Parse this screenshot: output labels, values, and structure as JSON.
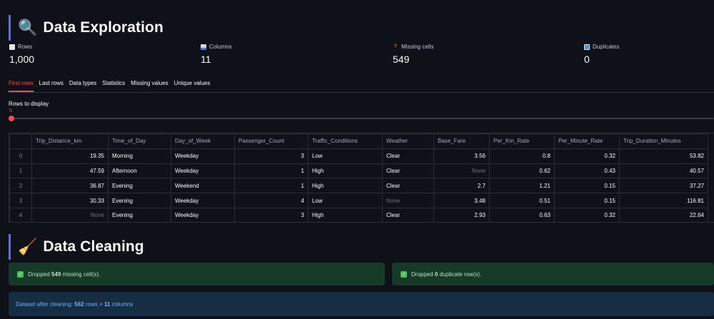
{
  "exploration": {
    "title": "Data Exploration",
    "icon": "magnifier-icon"
  },
  "metrics": [
    {
      "label": "Rows",
      "value": "1,000",
      "icon": "page-icon"
    },
    {
      "label": "Columns",
      "value": "11",
      "icon": "bar-chart-icon"
    },
    {
      "label": "Missing cells",
      "value": "549",
      "icon": "question-icon"
    },
    {
      "label": "Duplicates",
      "value": "0",
      "icon": "duplicate-icon"
    }
  ],
  "tabs": [
    "First rows",
    "Last rows",
    "Data types",
    "Statistics",
    "Missing values",
    "Unique values"
  ],
  "active_tab": 0,
  "slider": {
    "label": "Rows to display",
    "value": "5"
  },
  "table": {
    "columns": [
      "Trip_Distance_km",
      "Time_of_Day",
      "Day_of_Week",
      "Passenger_Count",
      "Traffic_Conditions",
      "Weather",
      "Base_Fare",
      "Per_Km_Rate",
      "Per_Minute_Rate",
      "Trip_Duration_Minutes"
    ],
    "rows": [
      {
        "index": "0",
        "cells": [
          "19.35",
          "Morning",
          "Weekday",
          "3",
          "Low",
          "Clear",
          "3.56",
          "0.8",
          "0.32",
          "53.82"
        ]
      },
      {
        "index": "1",
        "cells": [
          "47.59",
          "Afternoon",
          "Weekday",
          "1",
          "High",
          "Clear",
          "None",
          "0.62",
          "0.43",
          "40.57"
        ]
      },
      {
        "index": "2",
        "cells": [
          "36.87",
          "Evening",
          "Weekend",
          "1",
          "High",
          "Clear",
          "2.7",
          "1.21",
          "0.15",
          "37.27"
        ]
      },
      {
        "index": "3",
        "cells": [
          "30.33",
          "Evening",
          "Weekday",
          "4",
          "Low",
          "None",
          "3.48",
          "0.51",
          "0.15",
          "116.81"
        ]
      },
      {
        "index": "4",
        "cells": [
          "None",
          "Evening",
          "Weekday",
          "3",
          "High",
          "Clear",
          "2.93",
          "0.63",
          "0.32",
          "22.64"
        ]
      }
    ]
  },
  "cleaning": {
    "title": "Data Cleaning",
    "icon": "broom-icon",
    "missing_alert": {
      "prefix": "Dropped ",
      "count": "549",
      "suffix": " missing cell(s)."
    },
    "dup_alert": {
      "prefix": "Dropped ",
      "count": "0",
      "suffix": " duplicate row(s)."
    },
    "info": {
      "prefix": "Dataset after cleaning: ",
      "rows": "562",
      "mid": " rows × ",
      "cols": "11",
      "suffix": " columns"
    }
  },
  "colors": {
    "accent": "#ff4b4b",
    "success_bg": "#173928",
    "info_bg": "#172d43",
    "background": "#0e1117"
  }
}
